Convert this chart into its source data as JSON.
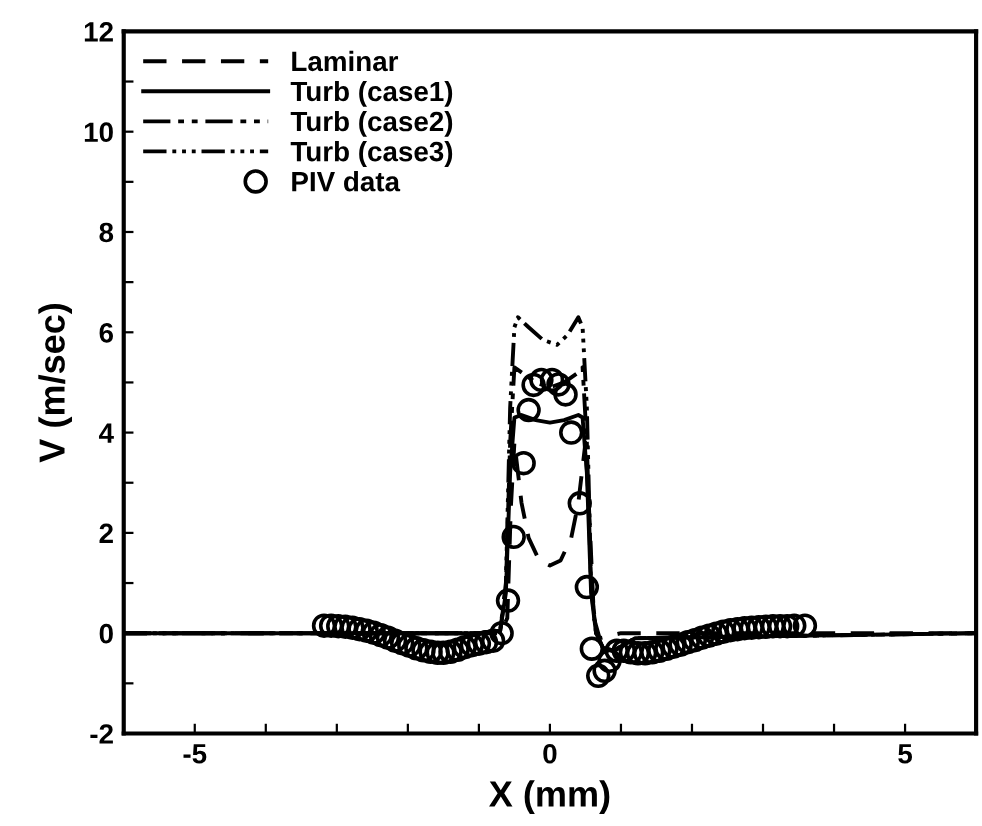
{
  "chart_data": {
    "type": "line",
    "xlabel": "X (mm)",
    "ylabel": "V (m/sec)",
    "xlim": [
      -6,
      6
    ],
    "ylim": [
      -2,
      12
    ],
    "xticks": [
      {
        "value": -6,
        "label": null
      },
      -5,
      {
        "value": -4,
        "label": null
      },
      {
        "value": -3,
        "label": null
      },
      {
        "value": -2,
        "label": null
      },
      {
        "value": -1,
        "label": null
      },
      0,
      {
        "value": 1,
        "label": null
      },
      {
        "value": 2,
        "label": null
      },
      {
        "value": 3,
        "label": null
      },
      {
        "value": 4,
        "label": null
      },
      5,
      {
        "value": 6,
        "label": null
      }
    ],
    "yticks": [
      -2,
      {
        "value": -1,
        "label": null
      },
      0,
      {
        "value": 1,
        "label": null
      },
      2,
      {
        "value": 3,
        "label": null
      },
      4,
      {
        "value": 5,
        "label": null
      },
      6,
      {
        "value": 7,
        "label": null
      },
      8,
      {
        "value": 9,
        "label": null
      },
      10,
      {
        "value": 11,
        "label": null
      },
      12
    ],
    "grid": false,
    "legend": "top left",
    "series": [
      {
        "name": "Laminar",
        "color": "#000000",
        "line_style": "dashed",
        "x": [
          -6,
          -1,
          -0.7,
          -0.6,
          -0.55,
          -0.5,
          -0.45,
          -0.4,
          -0.3,
          -0.15,
          0,
          0.15,
          0.3,
          0.4,
          0.45,
          0.5,
          0.55,
          0.62,
          0.7,
          1,
          6
        ],
        "values": [
          0,
          0,
          0,
          0.3,
          2.5,
          3.8,
          3.2,
          2.6,
          1.9,
          1.45,
          1.35,
          1.45,
          1.9,
          2.6,
          3.2,
          3.8,
          2.5,
          0.3,
          -0.1,
          0,
          0
        ]
      },
      {
        "name": "Turb (case1)",
        "color": "#000000",
        "line_style": "solid",
        "x": [
          -6,
          -1,
          -0.7,
          -0.62,
          -0.56,
          -0.5,
          -0.4,
          -0.2,
          0,
          0.2,
          0.4,
          0.46,
          0.52,
          0.58,
          0.65,
          0.75,
          0.9,
          1.2,
          6
        ],
        "values": [
          0,
          0,
          0.05,
          0.8,
          3.2,
          4.3,
          4.35,
          4.25,
          4.2,
          4.25,
          4.35,
          4.3,
          3.2,
          0.8,
          0,
          -0.3,
          -0.35,
          -0.1,
          0
        ]
      },
      {
        "name": "Turb (case2)",
        "color": "#000000",
        "line_style": "dashdot",
        "x": [
          -6,
          -1,
          -0.7,
          -0.62,
          -0.56,
          -0.5,
          -0.4,
          -0.2,
          0,
          0.2,
          0.4,
          0.46,
          0.52,
          0.58,
          0.65,
          0.75,
          0.9,
          1.2,
          6
        ],
        "values": [
          0,
          0,
          0.05,
          0.9,
          3.8,
          5.3,
          5.2,
          5.0,
          4.9,
          5.0,
          5.2,
          5.3,
          3.8,
          0.9,
          0,
          -0.3,
          -0.35,
          -0.1,
          0
        ]
      },
      {
        "name": "Turb (case3)",
        "color": "#000000",
        "line_style": "dashdotdot",
        "x": [
          -6,
          -1,
          -0.7,
          -0.62,
          -0.56,
          -0.5,
          -0.45,
          -0.3,
          -0.1,
          0.1,
          0.25,
          0.4,
          0.46,
          0.52,
          0.58,
          0.65,
          0.75,
          0.9,
          1.2,
          6
        ],
        "values": [
          0,
          0,
          0.05,
          1.0,
          4.5,
          6.1,
          6.3,
          6.1,
          5.85,
          5.75,
          5.95,
          6.3,
          6.1,
          4.5,
          1.0,
          0,
          -0.3,
          -0.35,
          -0.1,
          0
        ]
      },
      {
        "name": "PIV data",
        "color": "#000000",
        "type": "scatter",
        "marker": "circle",
        "x": [
          -3.18,
          -3.08,
          -2.98,
          -2.88,
          -2.78,
          -2.68,
          -2.58,
          -2.48,
          -2.38,
          -2.28,
          -2.18,
          -2.08,
          -1.98,
          -1.88,
          -1.78,
          -1.68,
          -1.58,
          -1.5,
          -1.4,
          -1.3,
          -1.2,
          -1.1,
          -1.0,
          -0.9,
          -0.8,
          -0.68,
          -0.59,
          -0.51,
          -0.37,
          -0.3,
          -0.23,
          -0.12,
          0.03,
          0.12,
          0.22,
          0.3,
          0.42,
          0.52,
          0.59,
          0.68,
          0.77,
          0.84,
          0.94,
          1.04,
          1.14,
          1.24,
          1.34,
          1.44,
          1.54,
          1.64,
          1.74,
          1.84,
          1.94,
          2.04,
          2.14,
          2.24,
          2.34,
          2.44,
          2.54,
          2.64,
          2.74,
          2.84,
          2.94,
          3.04,
          3.14,
          3.24,
          3.34,
          3.44,
          3.59
        ],
        "values": [
          0.15,
          0.15,
          0.14,
          0.13,
          0.11,
          0.08,
          0.05,
          0.01,
          -0.04,
          -0.09,
          -0.15,
          -0.2,
          -0.25,
          -0.3,
          -0.34,
          -0.37,
          -0.39,
          -0.39,
          -0.37,
          -0.33,
          -0.28,
          -0.24,
          -0.21,
          -0.18,
          -0.15,
          0.0,
          0.65,
          1.92,
          3.39,
          4.45,
          4.95,
          5.05,
          5.05,
          4.96,
          4.76,
          4.0,
          2.59,
          0.92,
          -0.31,
          -0.85,
          -0.75,
          -0.55,
          -0.35,
          -0.35,
          -0.38,
          -0.4,
          -0.4,
          -0.38,
          -0.35,
          -0.31,
          -0.27,
          -0.23,
          -0.18,
          -0.14,
          -0.09,
          -0.05,
          -0.01,
          0.03,
          0.06,
          0.08,
          0.1,
          0.11,
          0.12,
          0.13,
          0.14,
          0.14,
          0.14,
          0.15,
          0.15
        ]
      }
    ]
  }
}
